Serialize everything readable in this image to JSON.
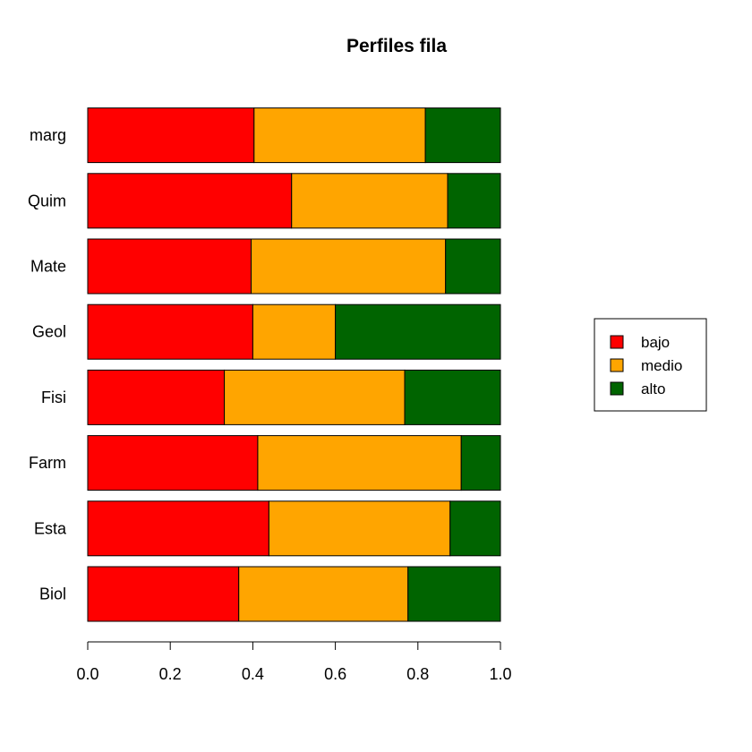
{
  "chart_data": {
    "type": "bar",
    "orientation": "horizontal",
    "stacked": true,
    "title": "Perfiles fila",
    "xlabel": "",
    "ylabel": "",
    "xlim": [
      0,
      1
    ],
    "x_ticks": [
      "0.0",
      "0.2",
      "0.4",
      "0.6",
      "0.8",
      "1.0"
    ],
    "categories": [
      "Biol",
      "Esta",
      "Farm",
      "Fisi",
      "Geol",
      "Mate",
      "Quim",
      "marg"
    ],
    "series": [
      {
        "name": "bajo",
        "color": "#ff0000",
        "values": [
          0.366,
          0.439,
          0.412,
          0.331,
          0.4,
          0.396,
          0.494,
          0.403
        ]
      },
      {
        "name": "medio",
        "color": "#ffa500",
        "values": [
          0.41,
          0.439,
          0.493,
          0.437,
          0.2,
          0.471,
          0.378,
          0.415
        ]
      },
      {
        "name": "alto",
        "color": "#006400",
        "values": [
          0.224,
          0.122,
          0.095,
          0.232,
          0.4,
          0.133,
          0.128,
          0.182
        ]
      }
    ],
    "grid": false,
    "legend_position": "right"
  }
}
